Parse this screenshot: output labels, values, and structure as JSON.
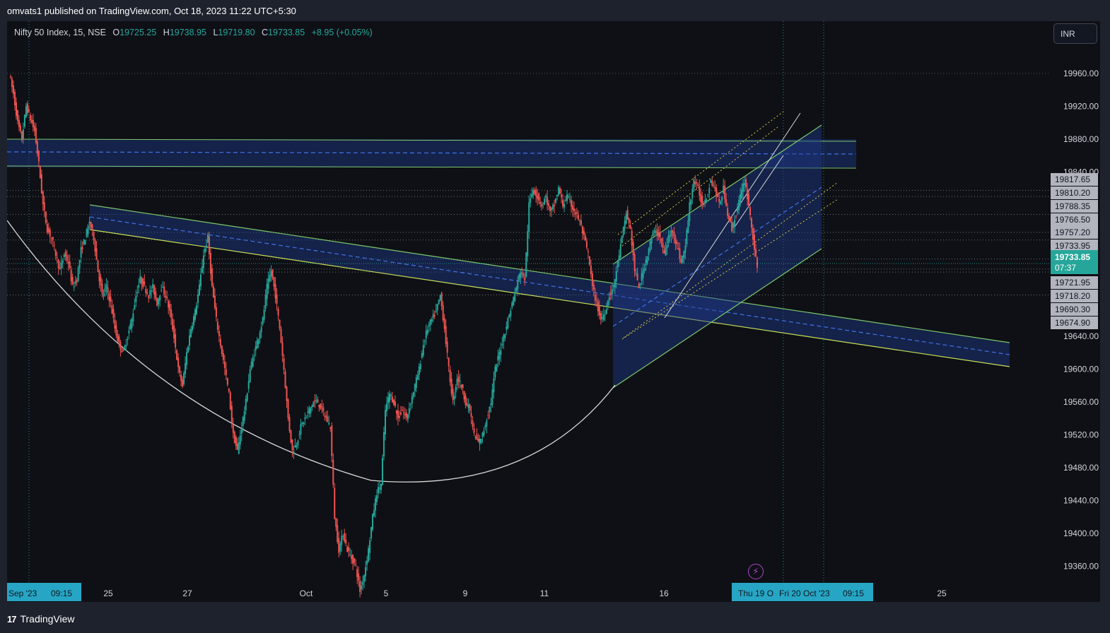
{
  "header": {
    "publisher_text": "omvats1 published on TradingView.com, Oct 18, 2023 11:22 UTC+5:30"
  },
  "legend": {
    "symbol": "Nifty 50 Index, 15, NSE",
    "open_label": "O",
    "open": "19725.25",
    "high_label": "H",
    "high": "19738.95",
    "low_label": "L",
    "low": "19719.80",
    "close_label": "C",
    "close": "19733.85",
    "change": "+8.95 (+0.05%)"
  },
  "currency_button": "INR",
  "footer": {
    "brand": "TradingView",
    "logo_text": "17"
  },
  "colors": {
    "background": "#0e1015",
    "up": "#26a69a",
    "down": "#ef5350",
    "channel_fill": "#1e3a8a",
    "channel_border": "#7cc96b",
    "midline": "#3b6fe0",
    "arc": "#d8d8d8",
    "fib": "#d9c84a",
    "current_price": "#26a69a"
  },
  "chart_data": {
    "type": "candlestick",
    "interval": "15",
    "ylim": [
      19320,
      19990
    ],
    "y_ticks": [
      19960,
      19920,
      19880,
      19840,
      19640,
      19600,
      19560,
      19520,
      19480,
      19440,
      19400,
      19360
    ],
    "x_tick_labels": [
      "25",
      "27",
      "Oct",
      "5",
      "9",
      "11",
      "16",
      "25"
    ],
    "x_highlight_labels": [
      "Sep '23",
      "09:15",
      "Thu 19 O",
      "Fri 20 Oct '23",
      "09:15"
    ],
    "price_labels": [
      "19817.65",
      "19810.20",
      "19788.35",
      "19766.50",
      "19757.20",
      "19733.95",
      "19721.95",
      "19718.20",
      "19690.30",
      "19674.90"
    ],
    "current_price": {
      "value": "19733.85",
      "countdown": "07:37"
    },
    "path": [
      19960,
      19935,
      19900,
      19880,
      19920,
      19905,
      19890,
      19850,
      19800,
      19770,
      19760,
      19740,
      19720,
      19740,
      19730,
      19700,
      19710,
      19745,
      19760,
      19780,
      19760,
      19720,
      19690,
      19700,
      19680,
      19650,
      19630,
      19620,
      19640,
      19660,
      19690,
      19710,
      19700,
      19690,
      19700,
      19680,
      19700,
      19690,
      19670,
      19640,
      19600,
      19580,
      19620,
      19650,
      19670,
      19700,
      19740,
      19760,
      19700,
      19660,
      19630,
      19600,
      19570,
      19520,
      19500,
      19530,
      19560,
      19600,
      19620,
      19640,
      19660,
      19700,
      19720,
      19690,
      19650,
      19600,
      19540,
      19500,
      19510,
      19530,
      19540,
      19550,
      19560,
      19560,
      19550,
      19540,
      19530,
      19420,
      19380,
      19400,
      19380,
      19370,
      19360,
      19330,
      19350,
      19380,
      19420,
      19450,
      19460,
      19550,
      19570,
      19560,
      19540,
      19550,
      19540,
      19560,
      19580,
      19600,
      19630,
      19650,
      19660,
      19670,
      19690,
      19650,
      19600,
      19560,
      19590,
      19580,
      19560,
      19550,
      19520,
      19510,
      19520,
      19540,
      19560,
      19600,
      19620,
      19640,
      19660,
      19680,
      19700,
      19720,
      19710,
      19800,
      19820,
      19810,
      19800,
      19810,
      19790,
      19800,
      19820,
      19800,
      19810,
      19800,
      19790,
      19780,
      19760,
      19740,
      19700,
      19680,
      19660,
      19670,
      19690,
      19700,
      19730,
      19760,
      19790,
      19770,
      19720,
      19700,
      19720,
      19740,
      19760,
      19770,
      19760,
      19740,
      19760,
      19770,
      19750,
      19730,
      19750,
      19800,
      19830,
      19820,
      19800,
      19810,
      19830,
      19820,
      19800,
      19820,
      19790,
      19770,
      19790,
      19810,
      19830,
      19800,
      19760,
      19720
    ]
  }
}
